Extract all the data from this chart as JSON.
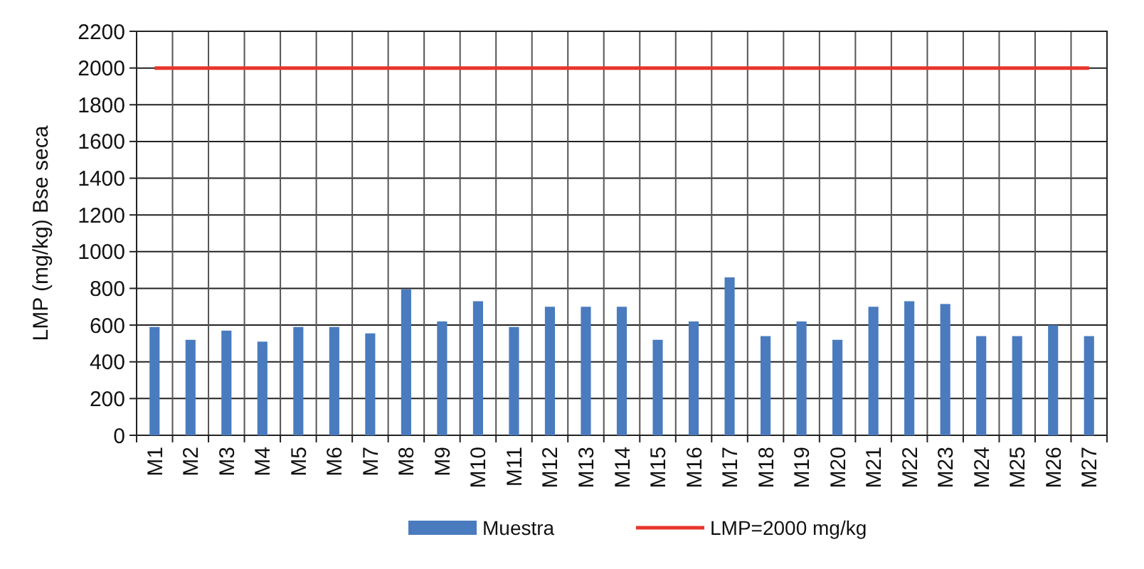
{
  "chart_data": {
    "type": "bar",
    "ylabel": "LMP (mg/kg) Bse seca",
    "categories": [
      "M1",
      "M2",
      "M3",
      "M4",
      "M5",
      "M6",
      "M7",
      "M8",
      "M9",
      "M10",
      "M11",
      "M12",
      "M13",
      "M14",
      "M15",
      "M16",
      "M17",
      "M18",
      "M19",
      "M20",
      "M21",
      "M22",
      "M23",
      "M24",
      "M25",
      "M26",
      "M27"
    ],
    "series": [
      {
        "name": "Muestra",
        "color": "#4a7bbf",
        "values": [
          590,
          520,
          570,
          510,
          590,
          590,
          555,
          795,
          620,
          730,
          590,
          700,
          700,
          700,
          520,
          620,
          860,
          540,
          620,
          520,
          700,
          730,
          715,
          540,
          540,
          600,
          540
        ]
      },
      {
        "name": "LMP=2000 mg/kg",
        "type": "line",
        "color": "#e8352b",
        "values": [
          2000,
          2000,
          2000,
          2000,
          2000,
          2000,
          2000,
          2000,
          2000,
          2000,
          2000,
          2000,
          2000,
          2000,
          2000,
          2000,
          2000,
          2000,
          2000,
          2000,
          2000,
          2000,
          2000,
          2000,
          2000,
          2000,
          2000
        ]
      }
    ],
    "ylim": [
      0,
      2200
    ],
    "yticks": [
      0,
      200,
      400,
      600,
      800,
      1000,
      1200,
      1400,
      1600,
      1800,
      2000,
      2200
    ],
    "grid": true,
    "legend": "bottom"
  }
}
